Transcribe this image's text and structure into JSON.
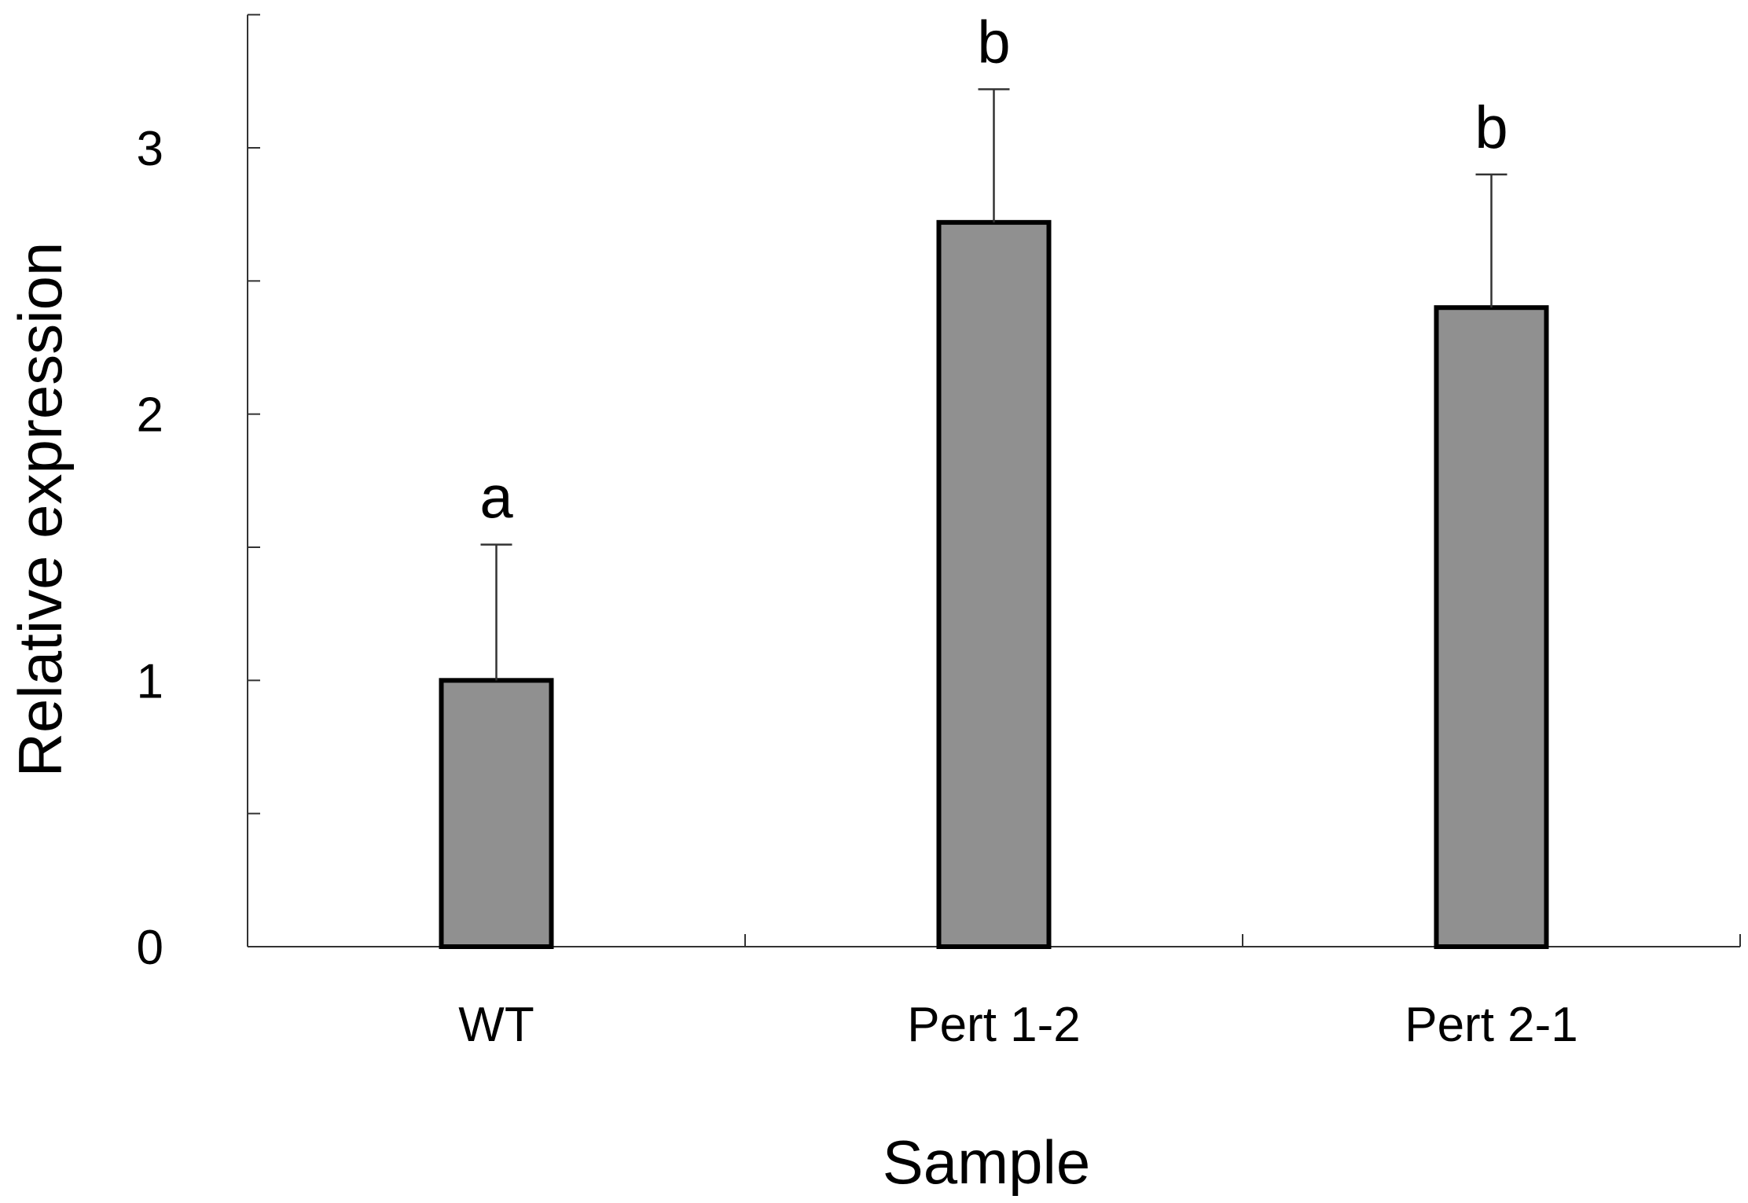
{
  "chart_data": {
    "type": "bar",
    "title": "",
    "xlabel": "Sample",
    "ylabel": "Relative expression",
    "categories": [
      "WT",
      "Pert 1-2",
      "Pert 2-1"
    ],
    "values": [
      1.0,
      2.72,
      2.4
    ],
    "error_upper": [
      0.51,
      0.5,
      0.5
    ],
    "significance": [
      "a",
      "b",
      "b"
    ],
    "ylim": [
      0,
      3.5
    ],
    "y_ticks": [
      0,
      1,
      2,
      3
    ],
    "y_minor_ticks": [
      0.5,
      1.5,
      2.5,
      3.5
    ],
    "grid": false,
    "colors": {
      "bar_fill": "#909090",
      "bar_edge": "#000000",
      "axis": "#333333",
      "text": "#000000"
    }
  }
}
